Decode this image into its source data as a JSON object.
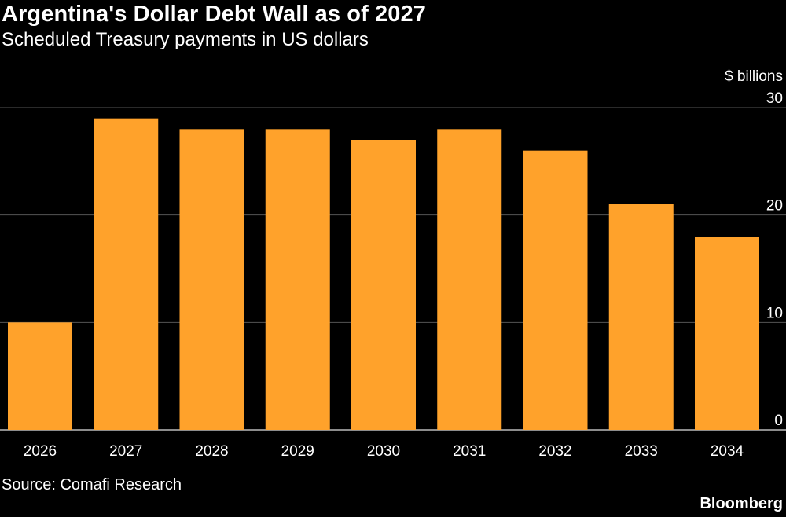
{
  "header": {
    "title": "Argentina's Dollar Debt Wall as of 2027",
    "subtitle": "Scheduled Treasury payments in US dollars"
  },
  "footer": {
    "source": "Source: Comafi Research",
    "brand": "Bloomberg"
  },
  "colors": {
    "background": "#000000",
    "bar": "#FFA22B",
    "gridline": "#555555",
    "text": "#ffffff"
  },
  "chart_data": {
    "type": "bar",
    "title": "Argentina's Dollar Debt Wall as of 2027",
    "subtitle": "Scheduled Treasury payments in US dollars",
    "unit_label": "$ billions",
    "categories": [
      "2026",
      "2027",
      "2028",
      "2029",
      "2030",
      "2031",
      "2032",
      "2033",
      "2034"
    ],
    "values": [
      10,
      29,
      28,
      28,
      27,
      28,
      26,
      21,
      18
    ],
    "ylim": [
      0,
      30
    ],
    "yticks": [
      0,
      10,
      20,
      30
    ],
    "grid": true,
    "y_axis_side": "right",
    "legend": "none"
  }
}
